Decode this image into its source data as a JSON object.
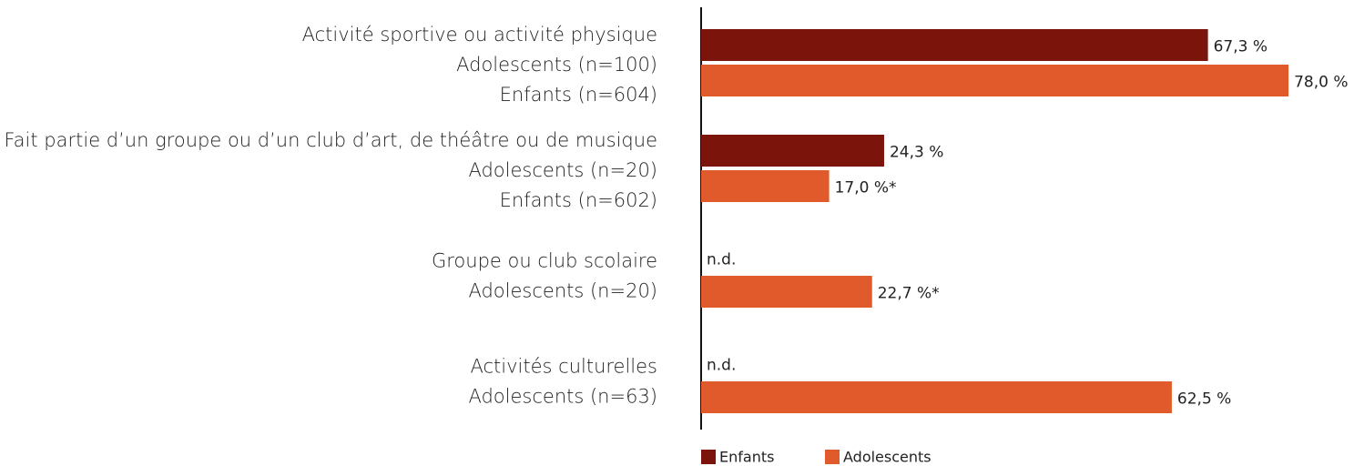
{
  "chart_data": {
    "type": "hbar",
    "categories": [
      [
        "Activité sportive ou activité physique",
        "Adolescents (n=100)",
        "Enfants (n=604)"
      ],
      [
        "Fait partie d’un groupe ou d’un club d’art, de théâtre ou de musique",
        "Adolescents (n=20)",
        "Enfants (n=602)"
      ],
      [
        "Groupe ou club scolaire",
        "Adolescents (n=20)"
      ],
      [
        "Activités culturelles",
        "Adolescents (n=63)"
      ]
    ],
    "series": [
      {
        "name": "Enfants",
        "color": "#7b150c",
        "values": [
          67.3,
          24.3,
          null,
          null
        ],
        "value_labels": [
          "67,3 %",
          "24,3 %",
          "n.d.",
          "n.d."
        ]
      },
      {
        "name": "Adolescents",
        "color": "#e05a2b",
        "values": [
          78.0,
          17.0,
          22.7,
          62.5
        ],
        "value_labels": [
          "78,0 %",
          "17,0 %*",
          "22,7 %*",
          "62,5 %"
        ]
      }
    ],
    "xlim": [
      0,
      85
    ]
  }
}
